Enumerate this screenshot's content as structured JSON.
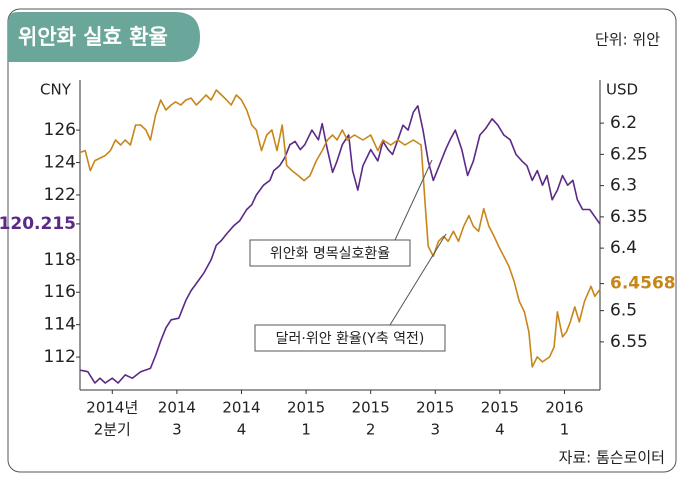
{
  "chart_data": {
    "type": "line",
    "title": "위안화 실효 환율",
    "unit": "단위: 위안",
    "source": "자료: 톰슨로이터",
    "ylabel": "CNY",
    "y2label": "USD",
    "xlim": [
      -0.5,
      7.55
    ],
    "xticks": [
      {
        "value": 0,
        "label": "2014년",
        "sublabel": "2분기"
      },
      {
        "value": 1,
        "label": "2014",
        "sublabel": "3"
      },
      {
        "value": 2,
        "label": "2014",
        "sublabel": "4"
      },
      {
        "value": 3,
        "label": "2015",
        "sublabel": "1"
      },
      {
        "value": 4,
        "label": "2015",
        "sublabel": "2"
      },
      {
        "value": 5,
        "label": "2015",
        "sublabel": "3"
      },
      {
        "value": 6,
        "label": "2015",
        "sublabel": "4"
      },
      {
        "value": 7,
        "label": "2016",
        "sublabel": "1"
      }
    ],
    "ylim": [
      109.97,
      129.09
    ],
    "yticks": [
      112,
      114,
      116,
      118,
      120.215,
      122,
      124,
      126
    ],
    "y2lim": [
      6.627,
      6.131
    ],
    "y2ticks": [
      6.2,
      6.25,
      6.3,
      6.35,
      6.4,
      6.4568,
      6.5,
      6.55
    ],
    "highlight_ticks": {
      "y": 120.215,
      "y2": 6.4568
    },
    "grid": false,
    "annotations": [
      "위안화 명목실호환율",
      "달러·위안 환율(Y축 역전)"
    ],
    "series": [
      {
        "name": "위안화 명목실호환율",
        "color": "#5b2a86",
        "axis": "y",
        "x": [
          -0.5,
          -0.38,
          -0.27,
          -0.19,
          -0.11,
          0,
          0.09,
          0.2,
          0.31,
          0.44,
          0.59,
          0.67,
          0.75,
          0.83,
          0.91,
          1.03,
          1.14,
          1.22,
          1.33,
          1.42,
          1.53,
          1.61,
          1.69,
          1.77,
          1.88,
          1.97,
          2.08,
          2.16,
          2.23,
          2.34,
          2.44,
          2.5,
          2.59,
          2.67,
          2.75,
          2.83,
          2.91,
          2.98,
          3.09,
          3.19,
          3.25,
          3.33,
          3.41,
          3.48,
          3.56,
          3.66,
          3.72,
          3.8,
          3.88,
          4,
          4.11,
          4.19,
          4.27,
          4.34,
          4.42,
          4.5,
          4.58,
          4.66,
          4.73,
          4.81,
          4.89,
          4.97,
          5.06,
          5.16,
          5.23,
          5.31,
          5.41,
          5.5,
          5.59,
          5.69,
          5.78,
          5.88,
          5.97,
          6.06,
          6.16,
          6.25,
          6.34,
          6.42,
          6.5,
          6.58,
          6.66,
          6.73,
          6.81,
          6.89,
          6.97,
          7.05,
          7.13,
          7.2,
          7.28,
          7.39,
          7.55
        ],
        "values": [
          111.2,
          111.1,
          110.4,
          110.7,
          110.4,
          110.7,
          110.4,
          110.9,
          110.7,
          111.1,
          111.3,
          112.1,
          113,
          113.8,
          114.3,
          114.4,
          115.5,
          116.1,
          116.7,
          117.2,
          118,
          118.9,
          119.2,
          119.6,
          120.1,
          120.4,
          121.1,
          121.4,
          122,
          122.6,
          122.9,
          123.5,
          123.8,
          124.3,
          125.1,
          125.3,
          124.8,
          125.1,
          126,
          125.4,
          126.4,
          124.8,
          123.4,
          124.1,
          125.1,
          125.7,
          123.5,
          122.3,
          123.8,
          124.8,
          124.1,
          125.3,
          124.8,
          124.5,
          125.4,
          126.3,
          126,
          127.1,
          127.5,
          126,
          124.1,
          122.9,
          123.8,
          124.8,
          125.4,
          126,
          124.8,
          123.2,
          124.1,
          125.7,
          126.1,
          126.7,
          126.3,
          125.7,
          125.4,
          124.5,
          124.1,
          123.8,
          122.9,
          123.5,
          122.6,
          123.2,
          121.7,
          122.3,
          123.2,
          122.6,
          122.9,
          121.7,
          121.1,
          121.1,
          120.2
        ]
      },
      {
        "name": "달러·위안 환율(Y축 역전)",
        "color": "#c8861a",
        "axis": "y2",
        "x": [
          -0.5,
          -0.42,
          -0.34,
          -0.27,
          -0.19,
          -0.11,
          -0.03,
          0.05,
          0.13,
          0.2,
          0.28,
          0.36,
          0.44,
          0.52,
          0.59,
          0.67,
          0.75,
          0.83,
          0.91,
          0.98,
          1.06,
          1.14,
          1.22,
          1.3,
          1.38,
          1.45,
          1.53,
          1.61,
          1.69,
          1.77,
          1.84,
          1.92,
          2,
          2.08,
          2.16,
          2.23,
          2.31,
          2.39,
          2.47,
          2.55,
          2.63,
          2.7,
          2.78,
          2.88,
          2.97,
          3.06,
          3.16,
          3.25,
          3.33,
          3.41,
          3.48,
          3.56,
          3.64,
          3.75,
          3.88,
          4,
          4.11,
          4.19,
          4.31,
          4.42,
          4.53,
          4.66,
          4.78,
          4.84,
          4.89,
          4.97,
          5.05,
          5.13,
          5.2,
          5.28,
          5.36,
          5.44,
          5.52,
          5.59,
          5.67,
          5.75,
          5.83,
          5.91,
          5.98,
          6.06,
          6.14,
          6.22,
          6.3,
          6.38,
          6.45,
          6.5,
          6.58,
          6.66,
          6.77,
          6.84,
          6.89,
          6.97,
          7.03,
          7.09,
          7.16,
          7.23,
          7.31,
          7.41,
          7.47,
          7.55
        ],
        "values": [
          6.247,
          6.244,
          6.276,
          6.26,
          6.256,
          6.252,
          6.244,
          6.227,
          6.235,
          6.227,
          6.235,
          6.203,
          6.203,
          6.211,
          6.227,
          6.187,
          6.163,
          6.179,
          6.171,
          6.166,
          6.171,
          6.163,
          6.16,
          6.171,
          6.163,
          6.155,
          6.163,
          6.147,
          6.155,
          6.163,
          6.171,
          6.155,
          6.163,
          6.179,
          6.203,
          6.211,
          6.244,
          6.219,
          6.211,
          6.244,
          6.203,
          6.268,
          6.276,
          6.284,
          6.292,
          6.284,
          6.26,
          6.244,
          6.227,
          6.219,
          6.227,
          6.211,
          6.227,
          6.219,
          6.227,
          6.219,
          6.244,
          6.227,
          6.235,
          6.227,
          6.235,
          6.227,
          6.235,
          6.324,
          6.397,
          6.413,
          6.389,
          6.381,
          6.389,
          6.373,
          6.389,
          6.365,
          6.348,
          6.365,
          6.373,
          6.337,
          6.365,
          6.381,
          6.397,
          6.413,
          6.429,
          6.453,
          6.485,
          6.502,
          6.534,
          6.59,
          6.574,
          6.582,
          6.574,
          6.558,
          6.502,
          6.542,
          6.534,
          6.518,
          6.494,
          6.518,
          6.485,
          6.461,
          6.477,
          6.466
        ]
      }
    ]
  }
}
